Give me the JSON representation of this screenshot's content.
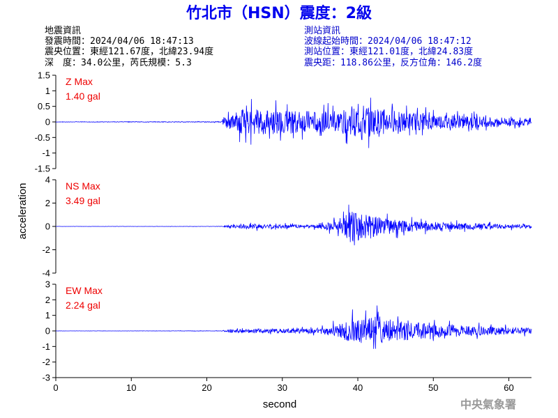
{
  "header": {
    "title": "竹北市（HSN）震度：2級"
  },
  "quake_info": {
    "heading": "地震資訊",
    "origin_time": "發震時間：2024/04/06 18:47:13",
    "epicenter": "震央位置：東經121.67度，北緯23.94度",
    "depth_magnitude": "深　度：34.0公里，芮氏規模：5.3"
  },
  "station_info": {
    "heading": "測站資訊",
    "wave_start": "波線起始時間：2024/04/06 18:47:12",
    "station_location": "測站位置：東經121.01度，北緯24.83度",
    "distance_azimuth": "震央距：118.86公里，反方位角：146.2度"
  },
  "footer": {
    "agency": "中央氣象署"
  },
  "chart_data": {
    "type": "line",
    "xlabel": "second",
    "ylabel": "acceleration",
    "xlim": [
      0,
      63
    ],
    "xticks": [
      0,
      10,
      20,
      30,
      40,
      50,
      60
    ],
    "line_color": "#0000ff",
    "label_color": "#ee0000",
    "panels": [
      {
        "name": "Z",
        "max_title": "Z Max",
        "max_value": "1.40 gal",
        "ylim": [
          -1.5,
          1.5
        ],
        "yticks": [
          -1.5,
          -1,
          -0.5,
          0,
          0.5,
          1,
          1.5
        ],
        "ytick_labels": [
          "-1.5",
          "-1",
          "-0.5",
          "0",
          "0.5",
          "1",
          "1.5"
        ],
        "envelope": {
          "t": [
            0,
            22,
            22.5,
            25,
            30,
            35,
            38,
            41,
            42,
            45,
            50,
            55,
            60,
            63
          ],
          "amp": [
            0.01,
            0.02,
            0.4,
            0.75,
            0.7,
            0.6,
            0.7,
            1.0,
            0.8,
            0.6,
            0.45,
            0.35,
            0.25,
            0.2
          ]
        }
      },
      {
        "name": "NS",
        "max_title": "NS Max",
        "max_value": "3.49 gal",
        "ylim": [
          -4,
          4
        ],
        "yticks": [
          -4,
          -2,
          0,
          2,
          4
        ],
        "ytick_labels": [
          "-4",
          "-2",
          "0",
          "2",
          "4"
        ],
        "envelope": {
          "t": [
            0,
            22,
            23,
            26,
            30,
            35,
            38,
            39,
            41,
            43,
            46,
            50,
            55,
            60,
            63
          ],
          "amp": [
            0.01,
            0.02,
            0.2,
            0.4,
            0.3,
            0.3,
            1.2,
            2.6,
            1.9,
            1.4,
            0.9,
            0.7,
            0.5,
            0.35,
            0.3
          ]
        }
      },
      {
        "name": "EW",
        "max_title": "EW Max",
        "max_value": "2.24 gal",
        "ylim": [
          -3,
          3
        ],
        "yticks": [
          -3,
          -2,
          -1,
          0,
          1,
          2,
          3
        ],
        "ytick_labels": [
          "-3",
          "-2",
          "-1",
          "0",
          "1",
          "2",
          "3"
        ],
        "envelope": {
          "t": [
            0,
            22,
            23,
            26,
            30,
            35,
            38,
            39,
            41,
            42.5,
            45,
            50,
            55,
            60,
            63
          ],
          "amp": [
            0.01,
            0.02,
            0.2,
            0.25,
            0.25,
            0.3,
            0.9,
            1.5,
            1.4,
            1.9,
            1.2,
            0.8,
            0.6,
            0.4,
            0.35
          ]
        }
      }
    ]
  }
}
